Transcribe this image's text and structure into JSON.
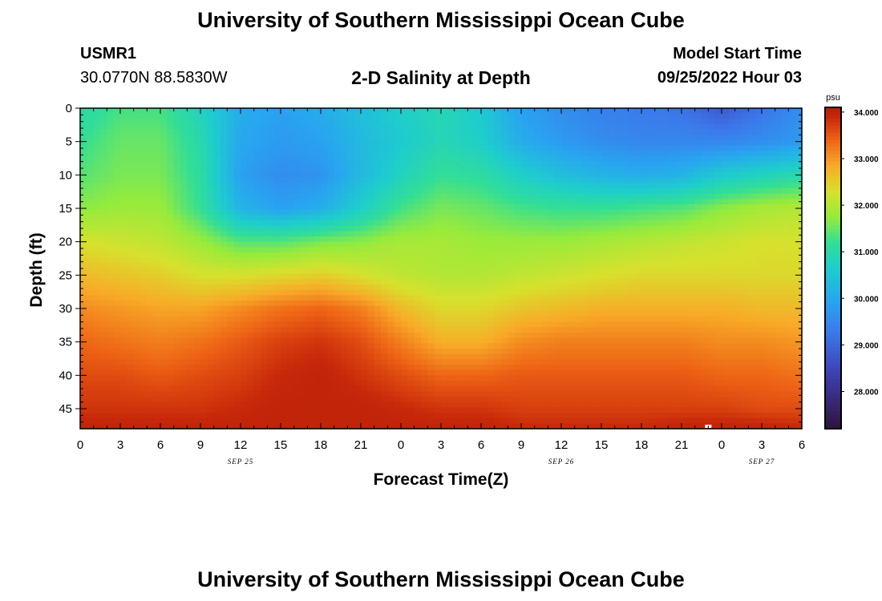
{
  "header": {
    "title": "University of Southern Mississippi Ocean Cube",
    "station_id": "USMR1",
    "coordinates": "30.0770N  88.5830W",
    "plot_title": "2-D Salinity at Depth",
    "model_label": "Model Start Time",
    "model_time": "09/25/2022 Hour 03"
  },
  "footer": {
    "title": "University of Southern Mississippi Ocean Cube"
  },
  "chart_data": {
    "type": "heatmap",
    "xlabel": "Forecast Time(Z)",
    "ylabel": "Depth (ft)",
    "xlim": [
      0,
      54
    ],
    "ylim": [
      48,
      0
    ],
    "x_ticks": [
      {
        "v": 0,
        "label": "0"
      },
      {
        "v": 3,
        "label": "3"
      },
      {
        "v": 6,
        "label": "6"
      },
      {
        "v": 9,
        "label": "9"
      },
      {
        "v": 12,
        "label": "12"
      },
      {
        "v": 15,
        "label": "15"
      },
      {
        "v": 18,
        "label": "18"
      },
      {
        "v": 21,
        "label": "21"
      },
      {
        "v": 24,
        "label": "0"
      },
      {
        "v": 27,
        "label": "3"
      },
      {
        "v": 30,
        "label": "6"
      },
      {
        "v": 33,
        "label": "9"
      },
      {
        "v": 36,
        "label": "12"
      },
      {
        "v": 39,
        "label": "15"
      },
      {
        "v": 42,
        "label": "18"
      },
      {
        "v": 45,
        "label": "21"
      },
      {
        "v": 48,
        "label": "0"
      },
      {
        "v": 51,
        "label": "3"
      },
      {
        "v": 54,
        "label": "6"
      }
    ],
    "date_labels": [
      {
        "v": 12,
        "label": "SEP 25"
      },
      {
        "v": 36,
        "label": "SEP 26"
      },
      {
        "v": 51,
        "label": "SEP 27"
      }
    ],
    "y_ticks": [
      0,
      5,
      10,
      15,
      20,
      25,
      30,
      35,
      40,
      45
    ],
    "colorbar": {
      "unit": "psu",
      "min": 27.2,
      "max": 34.1,
      "ticks": [
        {
          "v": 34.0,
          "label": "34.000"
        },
        {
          "v": 33.0,
          "label": "33.000"
        },
        {
          "v": 32.0,
          "label": "32.000"
        },
        {
          "v": 31.0,
          "label": "31.000"
        },
        {
          "v": 30.0,
          "label": "30.000"
        },
        {
          "v": 29.0,
          "label": "29.000"
        },
        {
          "v": 28.0,
          "label": "28.000"
        }
      ]
    },
    "grid_time": [
      0,
      3,
      6,
      9,
      12,
      15,
      18,
      21,
      24,
      27,
      30,
      33,
      36,
      39,
      42,
      45,
      48,
      51,
      54
    ],
    "grid_depth": [
      0,
      5,
      10,
      15,
      20,
      25,
      30,
      35,
      40,
      45,
      48
    ],
    "salinity": [
      [
        31.0,
        31.3,
        31.3,
        30.8,
        30.1,
        29.9,
        30.1,
        30.4,
        30.7,
        30.9,
        30.6,
        29.9,
        29.6,
        29.4,
        29.3,
        29.2,
        28.8,
        29.2,
        29.6
      ],
      [
        31.2,
        31.5,
        31.5,
        31.0,
        30.0,
        29.8,
        29.9,
        30.3,
        30.6,
        30.9,
        30.7,
        30.1,
        29.8,
        29.6,
        29.5,
        29.5,
        29.5,
        29.6,
        29.8
      ],
      [
        31.4,
        31.6,
        31.6,
        31.1,
        29.9,
        29.6,
        29.7,
        30.3,
        30.8,
        31.2,
        31.1,
        30.7,
        30.4,
        30.2,
        30.1,
        30.2,
        30.6,
        30.8,
        31.0
      ],
      [
        31.7,
        31.8,
        31.8,
        31.2,
        30.2,
        29.9,
        30.1,
        30.7,
        31.3,
        31.6,
        31.5,
        31.3,
        31.2,
        31.2,
        31.3,
        31.4,
        31.7,
        31.9,
        32.0
      ],
      [
        32.3,
        32.2,
        32.1,
        31.8,
        31.4,
        31.4,
        31.6,
        31.7,
        31.9,
        31.9,
        31.8,
        31.8,
        31.8,
        31.9,
        32.0,
        32.1,
        32.2,
        32.3,
        32.3
      ],
      [
        32.7,
        32.6,
        32.5,
        32.3,
        32.3,
        32.4,
        32.5,
        32.3,
        32.1,
        32.0,
        32.0,
        32.1,
        32.2,
        32.3,
        32.4,
        32.4,
        32.4,
        32.4,
        32.4
      ],
      [
        33.1,
        33.0,
        32.9,
        32.9,
        33.1,
        33.3,
        33.4,
        33.2,
        32.7,
        32.4,
        32.4,
        32.6,
        32.7,
        32.8,
        32.8,
        32.8,
        32.8,
        32.7,
        32.7
      ],
      [
        33.4,
        33.3,
        33.2,
        33.3,
        33.5,
        33.7,
        33.8,
        33.6,
        33.2,
        32.8,
        32.8,
        33.1,
        33.2,
        33.2,
        33.2,
        33.2,
        33.1,
        33.1,
        33.0
      ],
      [
        33.6,
        33.6,
        33.5,
        33.6,
        33.7,
        33.9,
        34.0,
        33.8,
        33.6,
        33.4,
        33.4,
        33.5,
        33.5,
        33.5,
        33.5,
        33.5,
        33.4,
        33.4,
        33.3
      ],
      [
        33.8,
        33.8,
        33.8,
        33.8,
        33.9,
        34.0,
        34.0,
        34.0,
        33.9,
        33.8,
        33.8,
        33.7,
        33.7,
        33.7,
        33.7,
        33.7,
        33.7,
        33.6,
        33.6
      ],
      [
        34.0,
        34.0,
        34.0,
        34.0,
        34.0,
        34.0,
        34.0,
        34.0,
        34.0,
        34.0,
        34.0,
        33.9,
        33.9,
        33.9,
        33.9,
        34.0,
        34.0,
        34.0,
        33.9
      ]
    ],
    "missing_marker": {
      "time": 47,
      "depth": 48
    }
  }
}
